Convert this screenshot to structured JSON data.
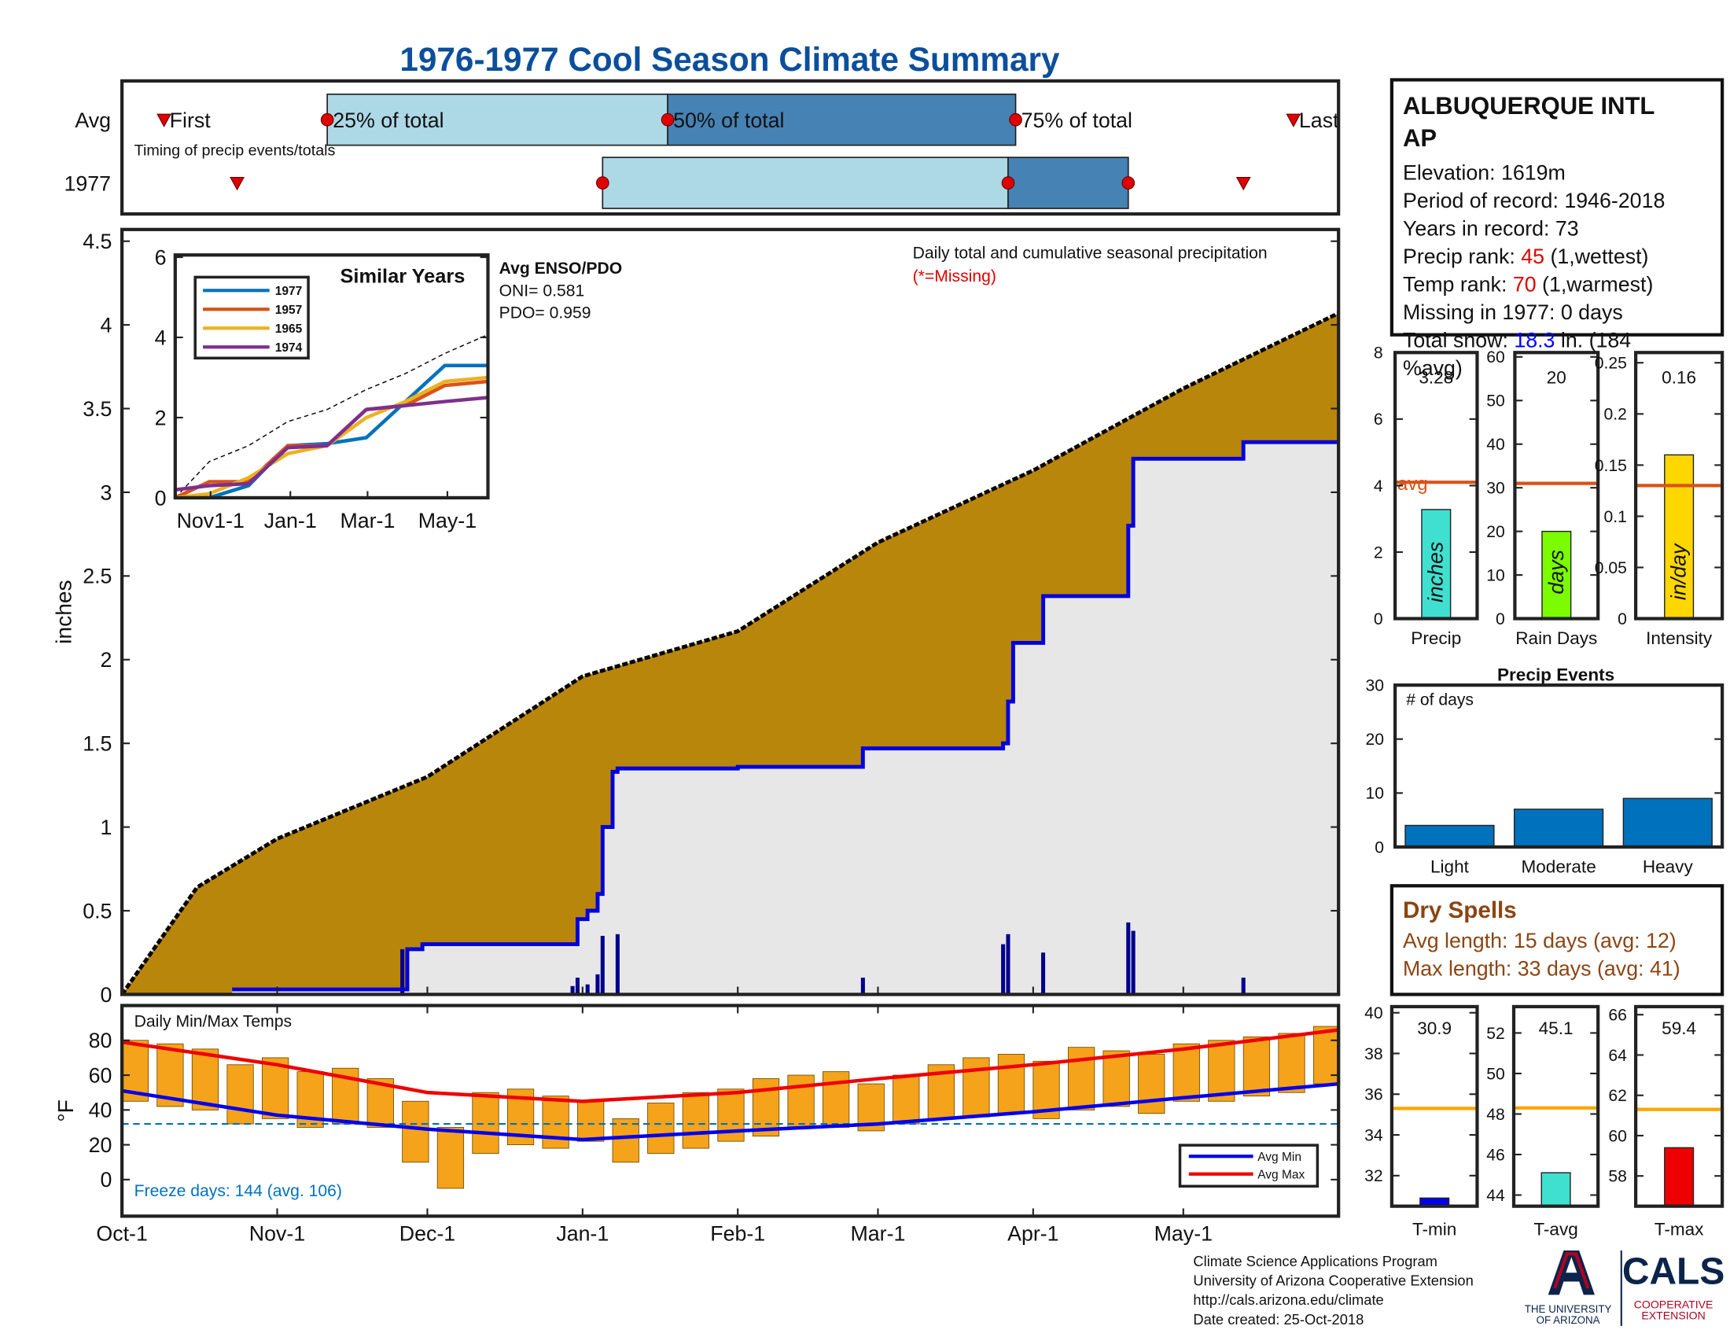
{
  "title": "1976-1977 Cool Season Climate Summary",
  "chart_data": [
    {
      "type": "timeline",
      "categories": [
        "Avg",
        "1977"
      ],
      "note": "Timing of precip events/totals",
      "xlim": [
        0,
        243
      ],
      "rows": [
        {
          "first": 8.4,
          "p25": 41,
          "p50": 109,
          "p75": 178.5,
          "last": 234
        },
        {
          "first": 23,
          "p25": 96,
          "p50": 177,
          "p75": 201,
          "last": 224
        }
      ],
      "labels": [
        "First",
        "25% of total",
        "50% of total",
        "75% of total",
        "Last"
      ],
      "colors": [
        "#add8e6",
        "#4682b4"
      ],
      "marker_color": "#e00000"
    },
    {
      "type": "area",
      "xlim": [
        0,
        243
      ],
      "ylim": [
        0,
        4.57
      ],
      "yticks": [
        0,
        0.5,
        1,
        1.5,
        2,
        2.5,
        3,
        3.5,
        4,
        4.5
      ],
      "ylabel": "inches",
      "annotation": "Daily total and cumulative seasonal precipitation",
      "missing_note": "(*=Missing)",
      "average": {
        "color": "#b8860b",
        "x": [
          0,
          15,
          31,
          61,
          92,
          123,
          151,
          182,
          212,
          243
        ],
        "values": [
          0,
          0.64,
          0.93,
          1.3,
          1.9,
          2.17,
          2.7,
          3.13,
          3.62,
          4.07
        ]
      },
      "year": {
        "color": "#0000dd",
        "fill": "#e8e7e7",
        "x": [
          22,
          57,
          57,
          60,
          60,
          91,
          91,
          93,
          93,
          95,
          95,
          96,
          96,
          98,
          98,
          99,
          99,
          123,
          123,
          148,
          148,
          176,
          176,
          177,
          177,
          178,
          178,
          184,
          184,
          201,
          201,
          202,
          202,
          224,
          224,
          243
        ],
        "values": [
          0.03,
          0.03,
          0.27,
          0.27,
          0.3,
          0.3,
          0.45,
          0.45,
          0.5,
          0.5,
          0.6,
          0.6,
          1.0,
          1.0,
          1.33,
          1.33,
          1.35,
          1.35,
          1.36,
          1.36,
          1.47,
          1.47,
          1.5,
          1.5,
          1.75,
          1.75,
          2.1,
          2.1,
          2.38,
          2.38,
          2.8,
          2.8,
          3.2,
          3.2,
          3.3,
          3.3
        ]
      },
      "daily": {
        "color": "#00008b",
        "x": [
          56,
          90,
          91,
          93,
          95,
          96,
          99,
          148,
          176,
          177,
          184,
          201,
          202,
          224
        ],
        "values": [
          0.27,
          0.05,
          0.1,
          0.06,
          0.12,
          0.35,
          0.36,
          0.1,
          0.3,
          0.36,
          0.25,
          0.43,
          0.38,
          0.1
        ]
      }
    },
    {
      "type": "line",
      "title": "Similar Years",
      "xlim": [
        4,
        243
      ],
      "ylim": [
        0,
        6
      ],
      "xticks": [
        {
          "value": 31,
          "label": "Nov1-1"
        },
        {
          "value": 92,
          "label": "Jan-1"
        },
        {
          "value": 151,
          "label": "Mar-1"
        },
        {
          "value": 212,
          "label": "May-1"
        }
      ],
      "yticks": [
        0,
        2,
        4,
        6
      ],
      "x": [
        4,
        30,
        60,
        90,
        120,
        150,
        180,
        210,
        243
      ],
      "series": [
        {
          "name": "1977",
          "color": "#0072bd",
          "values": [
            0,
            0,
            0.3,
            1.3,
            1.35,
            1.5,
            2.4,
            3.3,
            3.3
          ]
        },
        {
          "name": "1957",
          "color": "#d95319",
          "values": [
            0,
            0.4,
            0.4,
            1.3,
            1.3,
            2.2,
            2.3,
            2.8,
            2.9
          ]
        },
        {
          "name": "1965",
          "color": "#edb120",
          "values": [
            0,
            0.1,
            0.5,
            1.1,
            1.3,
            2.0,
            2.4,
            2.9,
            3.0
          ]
        },
        {
          "name": "1974",
          "color": "#7e2f8e",
          "values": [
            0.2,
            0.3,
            0.35,
            1.25,
            1.3,
            2.2,
            2.3,
            2.4,
            2.5
          ]
        }
      ],
      "average": {
        "color": "#000000",
        "values": [
          0,
          0.9,
          1.3,
          1.9,
          2.2,
          2.7,
          3.1,
          3.6,
          4.07
        ]
      },
      "enso": [
        "Avg ENSO/PDO",
        "ONI= 0.581",
        "PDO= 0.959"
      ]
    },
    {
      "type": "range_bar",
      "title": "Daily Min/Max Temps",
      "xlim": [
        0,
        243
      ],
      "ylim": [
        -21,
        100
      ],
      "xticks": [
        {
          "value": 0,
          "label": "Oct-1"
        },
        {
          "value": 31,
          "label": "Nov-1"
        },
        {
          "value": 61,
          "label": "Dec-1"
        },
        {
          "value": 92,
          "label": "Jan-1"
        },
        {
          "value": 123,
          "label": "Feb-1"
        },
        {
          "value": 151,
          "label": "Mar-1"
        },
        {
          "value": 182,
          "label": "Apr-1"
        },
        {
          "value": 212,
          "label": "May-1"
        }
      ],
      "yticks": [
        0,
        20,
        40,
        60,
        80
      ],
      "ylabel": "°F",
      "freeze_line": 32,
      "freeze_note": "Freeze days: 144 (avg. 106)",
      "daily": {
        "color": "#f5a31a",
        "x": [
          0,
          7,
          14,
          21,
          28,
          35,
          42,
          49,
          56,
          63,
          70,
          77,
          84,
          91,
          98,
          105,
          112,
          119,
          126,
          133,
          140,
          147,
          154,
          161,
          168,
          175,
          182,
          189,
          196,
          203,
          210,
          217,
          224,
          231,
          238
        ],
        "low": [
          45,
          42,
          40,
          32,
          35,
          30,
          32,
          30,
          10,
          -5,
          15,
          20,
          18,
          22,
          10,
          15,
          18,
          22,
          25,
          30,
          30,
          28,
          32,
          35,
          36,
          38,
          35,
          40,
          42,
          38,
          45,
          45,
          48,
          50,
          55
        ],
        "high": [
          80,
          78,
          75,
          66,
          70,
          62,
          64,
          58,
          45,
          30,
          50,
          52,
          48,
          45,
          35,
          44,
          50,
          52,
          58,
          60,
          62,
          55,
          60,
          66,
          70,
          72,
          68,
          76,
          74,
          72,
          78,
          80,
          82,
          84,
          88
        ]
      },
      "series": [
        {
          "name": "Avg Min",
          "color": "#0000ee",
          "x": [
            0,
            31,
            61,
            92,
            123,
            151,
            182,
            212,
            243
          ],
          "values": [
            51,
            37,
            29,
            23,
            28,
            32,
            39,
            47,
            55
          ]
        },
        {
          "name": "Avg Max",
          "color": "#ee0000",
          "x": [
            0,
            31,
            61,
            92,
            123,
            151,
            182,
            212,
            243
          ],
          "values": [
            79,
            66,
            50,
            45,
            50,
            58,
            66,
            75,
            86
          ]
        }
      ]
    },
    {
      "type": "single_bar",
      "xlabel": "Precip",
      "ylim": [
        0,
        8
      ],
      "yticks": [
        0,
        2,
        4,
        6,
        8
      ],
      "value": 3.28,
      "average": 4.1,
      "avg_label": "avg",
      "bar_label": "inches",
      "color": "#40e0d0",
      "avg_color": "#d95319"
    },
    {
      "type": "single_bar",
      "xlabel": "Rain Days",
      "ylim": [
        0,
        61
      ],
      "yticks": [
        0,
        10,
        20,
        30,
        40,
        50,
        60
      ],
      "value": 20,
      "average": 31,
      "bar_label": "days",
      "color": "#7cfc00",
      "avg_color": "#d95319"
    },
    {
      "type": "single_bar",
      "xlabel": "Intensity",
      "ylim": [
        0,
        0.26
      ],
      "yticks": [
        0,
        0.05,
        0.1,
        0.15,
        0.2,
        0.25
      ],
      "value": 0.16,
      "average": 0.13,
      "bar_label": "in/day",
      "color": "#ffd700",
      "avg_color": "#d95319"
    },
    {
      "type": "bar",
      "title": "Precip Events",
      "annotation": "# of days",
      "categories": [
        "Light",
        "Moderate",
        "Heavy"
      ],
      "values": [
        4,
        7,
        9
      ],
      "ylim": [
        0,
        30
      ],
      "yticks": [
        0,
        10,
        20,
        30
      ],
      "color": "#0072bd"
    },
    {
      "type": "single_bar",
      "xlabel": "T-min",
      "ylim": [
        30.5,
        40.3
      ],
      "yticks": [
        32,
        34,
        36,
        38,
        40
      ],
      "value": 30.9,
      "average": 35.3,
      "color": "#0000ee",
      "avg_color": "#ffa500"
    },
    {
      "type": "single_bar",
      "xlabel": "T-avg",
      "ylim": [
        43.45,
        53.3
      ],
      "yticks": [
        44,
        46,
        48,
        50,
        52
      ],
      "value": 45.1,
      "average": 48.3,
      "color": "#40e0d0",
      "avg_color": "#ffa500"
    },
    {
      "type": "single_bar",
      "xlabel": "T-max",
      "ylim": [
        56.5,
        66.4
      ],
      "yticks": [
        58,
        60,
        62,
        64,
        66
      ],
      "value": 59.4,
      "average": 61.3,
      "color": "#ee0000",
      "avg_color": "#ffa500"
    }
  ],
  "station": {
    "name": [
      "ALBUQUERQUE INTL",
      "AP"
    ],
    "lines": [
      [
        "Elevation: 1619m"
      ],
      [
        "Period of record: 1946-2018"
      ],
      [
        "Years in record: 73"
      ],
      [
        "Precip rank: ",
        {
          "text": "45",
          "color": "#e00000"
        },
        " (1,wettest)"
      ],
      [
        "Temp rank: ",
        {
          "text": "70",
          "color": "#e00000"
        },
        " (1,warmest)"
      ],
      [
        "Missing in 1977: 0 days"
      ],
      [
        "Total snow: ",
        {
          "text": "18.3",
          "color": "#0000ff"
        },
        " in. (184"
      ],
      [
        "%avg)"
      ]
    ]
  },
  "dry_spells": {
    "title": "Dry Spells",
    "color": "#8b4513",
    "lines": [
      "Avg length: 15 days (avg: 12)",
      "Max length: 33 days (avg: 41)"
    ]
  },
  "footer": {
    "lines": [
      "Climate Science Applications Program",
      "University of Arizona Cooperative Extension",
      "http://cals.arizona.edu/climate",
      " Date created: 25-Oct-2018"
    ],
    "ua": [
      "THE UNIVERSITY",
      "OF ARIZONA"
    ],
    "cals": [
      "CALS",
      "COOPERATIVE",
      "EXTENSION"
    ]
  }
}
